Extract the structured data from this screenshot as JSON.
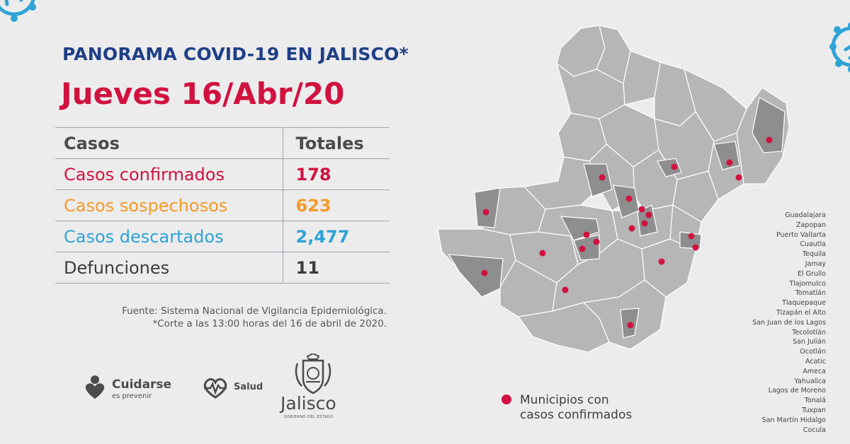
{
  "header": {
    "title_part1": "PANORAMA ",
    "title_part2": "COVID-19 EN JALISCO*",
    "date": "Jueves 16/Abr/20"
  },
  "table": {
    "header": {
      "col1": "Casos",
      "col2": "Totales"
    },
    "rows": [
      {
        "label": "Casos confirmados",
        "value": "178",
        "color": "#d1123f"
      },
      {
        "label": "Casos sospechosos",
        "value": "623",
        "color": "#f29b27"
      },
      {
        "label": "Casos descartados",
        "value": "2,477",
        "color": "#2ea3d6"
      },
      {
        "label": "Defunciones",
        "value": "11",
        "color": "#3c3c3c"
      }
    ]
  },
  "source": {
    "line1": "Fuente: Sistema Nacional de Vigilancia Epidemiológica.",
    "line2": "*Corte a las 13:00 horas del 16 de abril de 2020."
  },
  "logos": {
    "cuidarse_title": "Cuidarse",
    "cuidarse_sub": "es prevenir",
    "salud": "Salud",
    "jalisco": "Jalisco",
    "jalisco_sub": "GOBIERNO DEL ESTADO"
  },
  "municipalities": [
    "Guadalajara",
    "Zapopan",
    "Puerto Vallarta",
    "Cuautla",
    "Tequila",
    "Jamay",
    "El Grullo",
    "Tlajomulco",
    "Tomatlán",
    "Tlaquepaque",
    "Tizapán el Alto",
    "San Juan de los Lagos",
    "Tecolotlán",
    "San Julián",
    "Ocotlán",
    "Acatic",
    "Ameca",
    "Yahualica",
    "Lagos de Moreno",
    "Tonalá",
    "Tuxpan",
    "San Martín Hidalgo",
    "Cocula"
  ],
  "legend": {
    "line1": "Municipios con",
    "line2": "casos confirmados"
  },
  "colors": {
    "background": "#ececed",
    "title_blue": "#1f3f86",
    "accent_red": "#d1123f",
    "virus_blue": "#2ea3d6",
    "map_gray": "#b4b4b4",
    "map_highlight": "#8e8e8e"
  }
}
